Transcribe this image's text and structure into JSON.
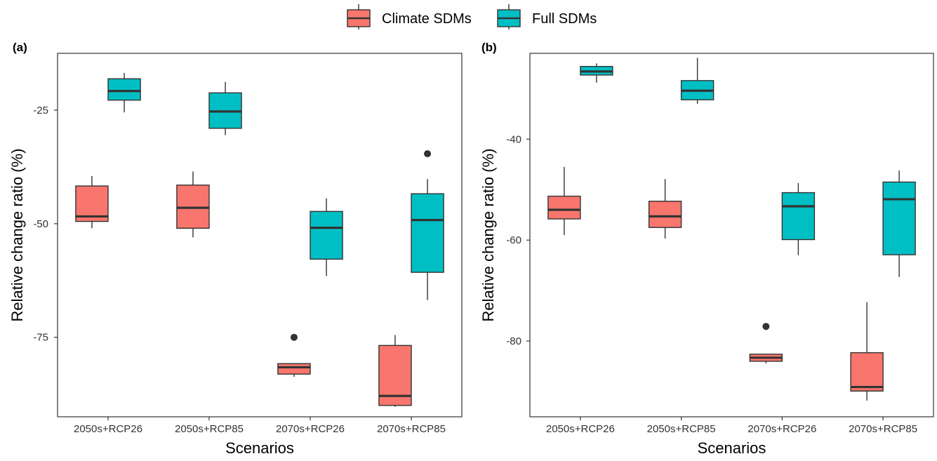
{
  "legend": {
    "items": [
      {
        "label": "Climate SDMs",
        "color": "#F8766D"
      },
      {
        "label": "Full SDMs",
        "color": "#00BFC4"
      }
    ]
  },
  "chart_data": [
    {
      "type": "box",
      "panel_label": "(a)",
      "xlabel": "Scenarios",
      "ylabel": "Relative change ratio (%)",
      "categories": [
        "2050s+RCP26",
        "2050s+RCP85",
        "2070s+RCP26",
        "2070s+RCP85"
      ],
      "ylim": [
        -92.5,
        -12.5
      ],
      "yticks": [
        -25,
        -50,
        -75
      ],
      "grid": false,
      "series": [
        {
          "name": "Climate SDMs",
          "color": "#F8766D",
          "boxes": [
            {
              "min": -51.0,
              "q1": -49.5,
              "median": -48.4,
              "q3": -41.7,
              "max": -39.5,
              "outliers": []
            },
            {
              "min": -53.0,
              "q1": -51.0,
              "median": -46.5,
              "q3": -41.5,
              "max": -38.5,
              "outliers": []
            },
            {
              "min": -83.7,
              "q1": -83.1,
              "median": -81.6,
              "q3": -80.8,
              "max": -80.8,
              "outliers": [
                -75.0
              ]
            },
            {
              "min": -90.3,
              "q1": -90.0,
              "median": -87.9,
              "q3": -76.8,
              "max": -74.5,
              "outliers": []
            }
          ]
        },
        {
          "name": "Full SDMs",
          "color": "#00BFC4",
          "boxes": [
            {
              "min": -25.5,
              "q1": -22.8,
              "median": -20.8,
              "q3": -18.1,
              "max": -16.8,
              "outliers": []
            },
            {
              "min": -30.5,
              "q1": -29.0,
              "median": -25.3,
              "q3": -21.2,
              "max": -18.8,
              "outliers": []
            },
            {
              "min": -61.5,
              "q1": -57.8,
              "median": -50.9,
              "q3": -47.3,
              "max": -44.4,
              "outliers": []
            },
            {
              "min": -66.8,
              "q1": -60.7,
              "median": -49.2,
              "q3": -43.4,
              "max": -40.2,
              "outliers": [
                -34.6
              ]
            }
          ]
        }
      ]
    },
    {
      "type": "box",
      "panel_label": "(b)",
      "xlabel": "Scenarios",
      "ylabel": "Relative change ratio (%)",
      "categories": [
        "2050s+RCP26",
        "2050s+RCP85",
        "2070s+RCP26",
        "2070s+RCP85"
      ],
      "ylim": [
        -95,
        -23
      ],
      "yticks": [
        -40,
        -60,
        -80
      ],
      "grid": false,
      "series": [
        {
          "name": "Climate SDMs",
          "color": "#F8766D",
          "boxes": [
            {
              "min": -59.0,
              "q1": -55.8,
              "median": -54.0,
              "q3": -51.3,
              "max": -45.5,
              "outliers": []
            },
            {
              "min": -59.7,
              "q1": -57.5,
              "median": -55.3,
              "q3": -52.3,
              "max": -47.9,
              "outliers": []
            },
            {
              "min": -84.4,
              "q1": -84.0,
              "median": -83.3,
              "q3": -82.6,
              "max": -82.6,
              "outliers": [
                -77.1
              ]
            },
            {
              "min": -91.8,
              "q1": -89.9,
              "median": -89.1,
              "q3": -82.3,
              "max": -72.3,
              "outliers": []
            }
          ]
        },
        {
          "name": "Full SDMs",
          "color": "#00BFC4",
          "boxes": [
            {
              "min": -28.8,
              "q1": -27.3,
              "median": -26.6,
              "q3": -25.6,
              "max": -25.0,
              "outliers": []
            },
            {
              "min": -33.0,
              "q1": -32.2,
              "median": -30.4,
              "q3": -28.4,
              "max": -23.9,
              "outliers": []
            },
            {
              "min": -63.0,
              "q1": -59.9,
              "median": -53.3,
              "q3": -50.6,
              "max": -48.7,
              "outliers": []
            },
            {
              "min": -67.3,
              "q1": -62.9,
              "median": -51.9,
              "q3": -48.5,
              "max": -46.2,
              "outliers": []
            }
          ]
        }
      ]
    }
  ]
}
